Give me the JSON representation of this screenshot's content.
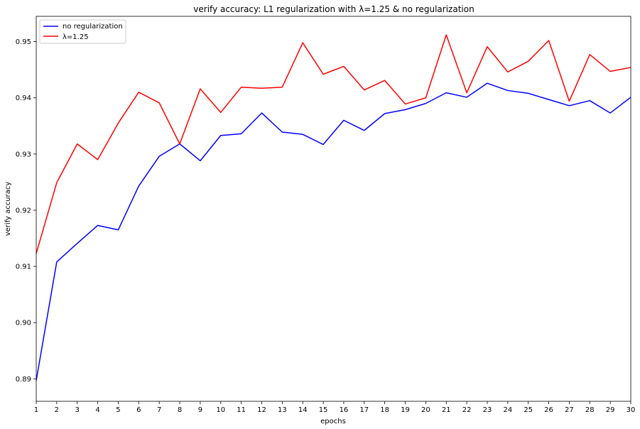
{
  "chart_data": {
    "type": "line",
    "title": "verify accuracy: L1 regularization with λ=1.25 & no regularization",
    "xlabel": "epochs",
    "ylabel": "verify accuracy",
    "x": [
      1,
      2,
      3,
      4,
      5,
      6,
      7,
      8,
      9,
      10,
      11,
      12,
      13,
      14,
      15,
      16,
      17,
      18,
      19,
      20,
      21,
      22,
      23,
      24,
      25,
      26,
      27,
      28,
      29,
      30
    ],
    "xlim": [
      1,
      30
    ],
    "ylim": [
      0.886,
      0.9545
    ],
    "yticks": [
      0.89,
      0.9,
      0.91,
      0.92,
      0.93,
      0.94,
      0.95
    ],
    "ytick_labels": [
      "0.89",
      "0.90",
      "0.91",
      "0.92",
      "0.93",
      "0.94",
      "0.95"
    ],
    "grid": false,
    "legend_position": "top-left",
    "series": [
      {
        "name": "no regularization",
        "color": "#0000ff",
        "values": [
          0.8897,
          0.9108,
          0.9141,
          0.9173,
          0.9165,
          0.9243,
          0.9296,
          0.9318,
          0.9288,
          0.9333,
          0.9336,
          0.9373,
          0.9339,
          0.9335,
          0.9317,
          0.936,
          0.9342,
          0.9372,
          0.9379,
          0.939,
          0.9409,
          0.9401,
          0.9426,
          0.9413,
          0.9408,
          0.9397,
          0.9386,
          0.9395,
          0.9373,
          0.9401
        ]
      },
      {
        "name": "λ=1.25",
        "color": "#ff0000",
        "values": [
          0.9123,
          0.9249,
          0.9318,
          0.929,
          0.9355,
          0.941,
          0.9391,
          0.9318,
          0.9416,
          0.9374,
          0.9419,
          0.9417,
          0.9419,
          0.9498,
          0.9442,
          0.9456,
          0.9414,
          0.9431,
          0.9389,
          0.94,
          0.9512,
          0.9409,
          0.9491,
          0.9446,
          0.9465,
          0.9502,
          0.9394,
          0.9477,
          0.9447,
          0.9454
        ]
      }
    ]
  }
}
